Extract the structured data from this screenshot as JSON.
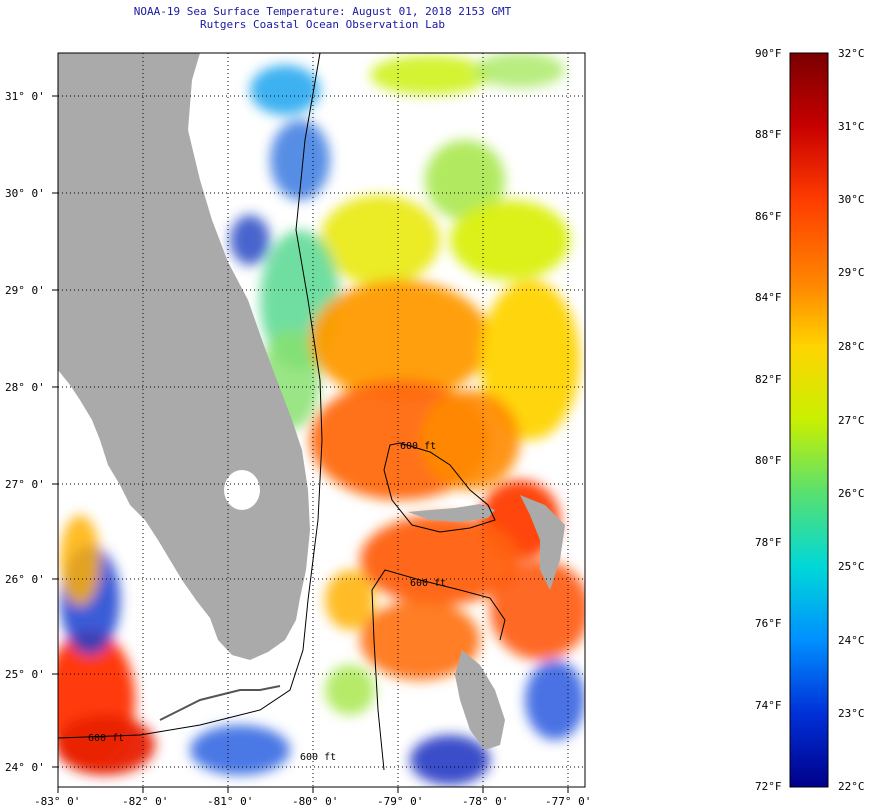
{
  "title_line1": "NOAA-19 Sea Surface Temperature:  August 01, 2018 2153 GMT",
  "title_line2": "Rutgers Coastal Ocean Observation Lab",
  "lat_labels": [
    "31° 0'",
    "30° 0'",
    "29° 0'",
    "28° 0'",
    "27° 0'",
    "26° 0'",
    "25° 0'",
    "24° 0'"
  ],
  "lon_labels": [
    "-83° 0'",
    "-82° 0'",
    "-81° 0'",
    "-80° 0'",
    "-79° 0'",
    "-78° 0'",
    "-77° 0'"
  ],
  "contour_labels": [
    "600 ft",
    "600 ft",
    "600 ft",
    "600 ft"
  ],
  "colorbar": {
    "f_labels": [
      "90°F",
      "88°F",
      "86°F",
      "84°F",
      "82°F",
      "80°F",
      "78°F",
      "76°F",
      "74°F",
      "72°F"
    ],
    "c_labels": [
      "32°C",
      "31°C",
      "30°C",
      "29°C",
      "28°C",
      "27°C",
      "26°C",
      "25°C",
      "24°C",
      "23°C",
      "22°C"
    ],
    "colors": [
      "#7a0000",
      "#c80000",
      "#ff3c00",
      "#ff8a00",
      "#ffd400",
      "#c8f000",
      "#58e070",
      "#00d8d8",
      "#0090ff",
      "#0030d8",
      "#00008a"
    ]
  },
  "land_color": "#aaaaaa",
  "grid_style": "dotted"
}
